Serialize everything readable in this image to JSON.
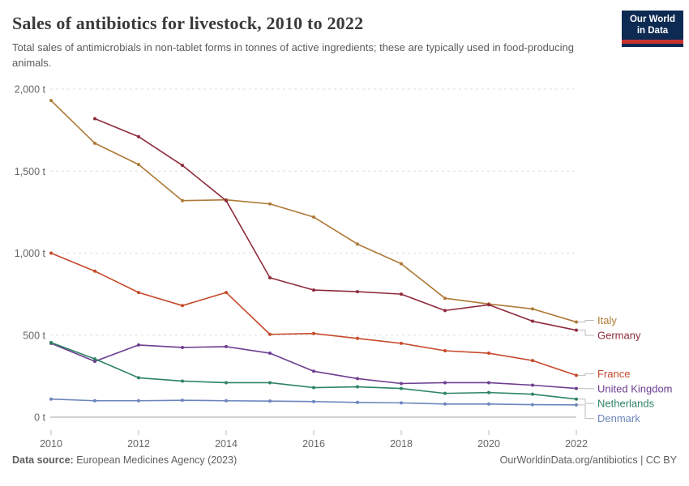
{
  "header": {
    "title": "Sales of antibiotics for livestock, 2010 to 2022",
    "subtitle": "Total sales of antimicrobials in non-tablet forms in tonnes of active ingredients; these are typically used in food-producing animals.",
    "logo": {
      "line1": "Our World",
      "line2": "in Data"
    }
  },
  "footer": {
    "source_label": "Data source:",
    "source_text": " European Medicines Agency (2023)",
    "right_text": "OurWorldinData.org/antibiotics | CC BY"
  },
  "chart_data": {
    "type": "line",
    "title": "Sales of antibiotics for livestock, 2010 to 2022",
    "unit": "t",
    "x": [
      2010,
      2011,
      2012,
      2013,
      2014,
      2015,
      2016,
      2017,
      2018,
      2019,
      2020,
      2021,
      2022
    ],
    "x_tick_labels": [
      "2010",
      "2012",
      "2014",
      "2016",
      "2018",
      "2020",
      "2022"
    ],
    "y_ticks": [
      0,
      500,
      1000,
      1500,
      2000
    ],
    "y_tick_labels": [
      "0 t",
      "500 t",
      "1,000 t",
      "1,500 t",
      "2,000 t"
    ],
    "ylim": [
      0,
      2000
    ],
    "grid": true,
    "legend_position": "right",
    "series": [
      {
        "name": "Italy",
        "color": "#AE7936",
        "values": [
          1930,
          1670,
          1540,
          1320,
          1325,
          1300,
          1220,
          1055,
          935,
          725,
          690,
          660,
          580
        ]
      },
      {
        "name": "Germany",
        "color": "#8E2B3B",
        "values": [
          null,
          1820,
          1710,
          1535,
          1320,
          850,
          775,
          765,
          750,
          650,
          685,
          585,
          530
        ]
      },
      {
        "name": "France",
        "color": "#C5492B",
        "values": [
          1000,
          890,
          760,
          680,
          760,
          505,
          510,
          480,
          450,
          405,
          390,
          345,
          255
        ]
      },
      {
        "name": "United Kingdom",
        "color": "#6D3E91",
        "values": [
          450,
          340,
          440,
          425,
          430,
          390,
          280,
          235,
          205,
          210,
          210,
          195,
          175
        ]
      },
      {
        "name": "Netherlands",
        "color": "#2C8465",
        "values": [
          455,
          355,
          240,
          220,
          210,
          210,
          180,
          185,
          175,
          145,
          150,
          140,
          110
        ]
      },
      {
        "name": "Denmark",
        "color": "#6B85BC",
        "values": [
          110,
          100,
          100,
          103,
          100,
          98,
          95,
          90,
          87,
          80,
          80,
          76,
          75
        ]
      }
    ]
  }
}
